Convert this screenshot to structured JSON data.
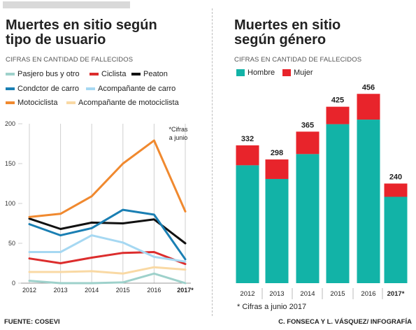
{
  "left": {
    "title_line1": "Muertes en sitio según",
    "title_line2": "tipo de usuario",
    "subtitle": "CIFRAS EN CANTIDAD DE FALLECIDOS"
  },
  "right": {
    "title_line1": "Muertes en sitio",
    "title_line2": "según género",
    "subtitle": "CIFRAS EN CANTIDAD DE FALLECIDOS",
    "footnote": "* Cifras a junio 2017"
  },
  "footer": {
    "source": "FUENTE: COSEVI",
    "credit": "C. FONSECA Y L. VÁSQUEZ/ INFOGRAFÍA"
  },
  "chart_data": [
    {
      "type": "line",
      "x": [
        "2012",
        "2013",
        "2014",
        "2015",
        "2016",
        "2017*"
      ],
      "yticks": [
        "0",
        "50",
        "100",
        "150",
        "200"
      ],
      "ylim": [
        0,
        200
      ],
      "grid": "vertical",
      "annotation": "*Cifras\na junio",
      "series": [
        {
          "name": "Pasjero  bus y otro",
          "color": "#9ed1cb",
          "values": [
            3,
            0,
            0,
            1,
            12,
            0
          ]
        },
        {
          "name": "Ciclista",
          "color": "#dc2d2d",
          "values": [
            31,
            25,
            32,
            38,
            39,
            24
          ]
        },
        {
          "name": "Peaton",
          "color": "#111111",
          "values": [
            81,
            68,
            76,
            75,
            80,
            50
          ]
        },
        {
          "name": "Condctor de carro",
          "color": "#1a7fb3",
          "values": [
            74,
            60,
            69,
            92,
            86,
            30
          ]
        },
        {
          "name": "Acompañante de carro",
          "color": "#a6d8f2",
          "values": [
            39,
            39,
            60,
            51,
            33,
            27
          ]
        },
        {
          "name": "Motociclista",
          "color": "#f0892f",
          "values": [
            83,
            87,
            109,
            150,
            179,
            90
          ]
        },
        {
          "name": "Acompañante de motociclista",
          "color": "#f9d9a4",
          "values": [
            14,
            14,
            15,
            12,
            20,
            17
          ]
        }
      ]
    },
    {
      "type": "bar",
      "stacked": true,
      "categories": [
        "2012",
        "2013",
        "2014",
        "2015",
        "2016",
        "2017*"
      ],
      "totals": [
        "332",
        "298",
        "365",
        "425",
        "456",
        "240"
      ],
      "series": [
        {
          "name": "Hombre",
          "color": "#12b3a7",
          "values": [
            284,
            251,
            311,
            383,
            394,
            208
          ]
        },
        {
          "name": "Mujer",
          "color": "#e8242b",
          "values": [
            48,
            47,
            54,
            42,
            62,
            32
          ]
        }
      ],
      "ylim": [
        0,
        480
      ]
    }
  ]
}
